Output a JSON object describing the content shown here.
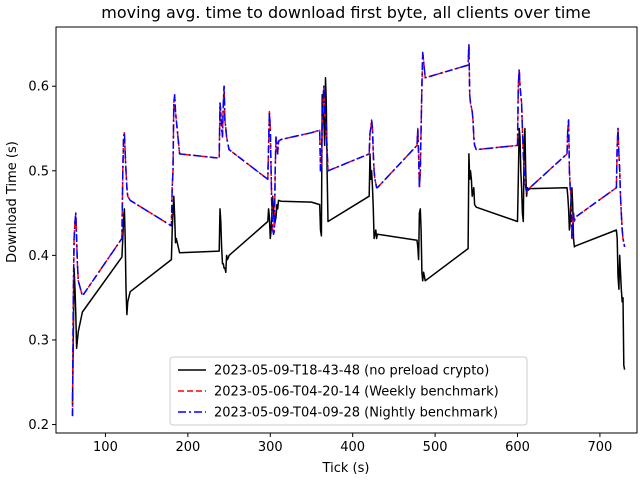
{
  "chart_data": {
    "type": "line",
    "title": "moving avg. time to download first byte, all clients over time",
    "xlabel": "Tick (s)",
    "ylabel": "Download Time (s)",
    "xlim": [
      40,
      745
    ],
    "ylim": [
      0.19,
      0.67
    ],
    "xticks": [
      100,
      200,
      300,
      400,
      500,
      600,
      700
    ],
    "yticks": [
      0.2,
      0.3,
      0.4,
      0.5,
      0.6
    ],
    "ytick_labels": [
      "0.2",
      "0.3",
      "0.4",
      "0.5",
      "0.6"
    ],
    "grid": false,
    "legend_position": "lower-center",
    "series": [
      {
        "name": "2023-05-09-T18-43-48 (no preload crypto)",
        "color": "#000000",
        "dash": "solid",
        "x": [
          60,
          61,
          62,
          63,
          64,
          65,
          66,
          67,
          72,
          120,
          121,
          122,
          123,
          124,
          125,
          126,
          127,
          130,
          180,
          181,
          182,
          183,
          184,
          185,
          186,
          190,
          238,
          239,
          240,
          241,
          242,
          243,
          244,
          245,
          246,
          247,
          248,
          249,
          250,
          297,
          298,
          299,
          300,
          301,
          302,
          303,
          304,
          305,
          306,
          307,
          308,
          309,
          310,
          313,
          350,
          360,
          361,
          362,
          363,
          364,
          365,
          366,
          367,
          368,
          369,
          370,
          420,
          421,
          422,
          423,
          424,
          425,
          426,
          427,
          428,
          429,
          430,
          478,
          479,
          480,
          481,
          482,
          483,
          484,
          485,
          486,
          487,
          488,
          540,
          541,
          542,
          543,
          544,
          545,
          546,
          547,
          548,
          550,
          600,
          601,
          602,
          603,
          604,
          605,
          606,
          607,
          608,
          609,
          610,
          611,
          612,
          613,
          615,
          660,
          661,
          662,
          663,
          664,
          665,
          666,
          667,
          668,
          669,
          670,
          720,
          721,
          722,
          723,
          724,
          725,
          726,
          727,
          728,
          729,
          730
        ],
        "y": [
          0.225,
          0.3,
          0.385,
          0.36,
          0.33,
          0.29,
          0.3,
          0.31,
          0.333,
          0.398,
          0.42,
          0.445,
          0.455,
          0.42,
          0.36,
          0.33,
          0.345,
          0.357,
          0.395,
          0.43,
          0.45,
          0.47,
          0.445,
          0.415,
          0.42,
          0.403,
          0.405,
          0.455,
          0.44,
          0.41,
          0.39,
          0.39,
          0.385,
          0.385,
          0.38,
          0.4,
          0.395,
          0.397,
          0.4,
          0.44,
          0.455,
          0.445,
          0.42,
          0.43,
          0.45,
          0.47,
          0.45,
          0.435,
          0.44,
          0.445,
          0.46,
          0.455,
          0.465,
          0.464,
          0.463,
          0.46,
          0.43,
          0.423,
          0.59,
          0.57,
          0.56,
          0.53,
          0.61,
          0.58,
          0.5,
          0.44,
          0.47,
          0.52,
          0.49,
          0.5,
          0.48,
          0.455,
          0.42,
          0.425,
          0.43,
          0.42,
          0.425,
          0.418,
          0.41,
          0.395,
          0.45,
          0.455,
          0.43,
          0.38,
          0.37,
          0.38,
          0.375,
          0.37,
          0.408,
          0.52,
          0.49,
          0.5,
          0.49,
          0.47,
          0.475,
          0.48,
          0.46,
          0.457,
          0.44,
          0.49,
          0.55,
          0.54,
          0.5,
          0.48,
          0.45,
          0.44,
          0.53,
          0.55,
          0.5,
          0.47,
          0.48,
          0.477,
          0.479,
          0.48,
          0.47,
          0.455,
          0.43,
          0.44,
          0.47,
          0.48,
          0.46,
          0.42,
          0.41,
          0.411,
          0.43,
          0.42,
          0.375,
          0.36,
          0.4,
          0.38,
          0.36,
          0.345,
          0.35,
          0.27,
          0.265
        ]
      },
      {
        "name": "2023-05-06-T04-20-14 (Weekly benchmark)",
        "color": "#ff0000",
        "dash": "dashed",
        "x": [
          60,
          61,
          62,
          63,
          64,
          65,
          66,
          67,
          72,
          120,
          121,
          122,
          123,
          124,
          125,
          126,
          127,
          130,
          180,
          181,
          182,
          183,
          184,
          185,
          186,
          190,
          238,
          239,
          240,
          241,
          242,
          243,
          244,
          245,
          246,
          247,
          248,
          249,
          250,
          297,
          298,
          299,
          300,
          301,
          302,
          303,
          304,
          305,
          306,
          307,
          308,
          309,
          310,
          313,
          350,
          360,
          361,
          362,
          363,
          364,
          365,
          366,
          367,
          368,
          369,
          370,
          420,
          421,
          422,
          423,
          424,
          425,
          426,
          427,
          428,
          429,
          430,
          478,
          479,
          480,
          481,
          482,
          483,
          484,
          485,
          486,
          487,
          488,
          540,
          541,
          542,
          543,
          544,
          545,
          546,
          547,
          548,
          550,
          600,
          601,
          602,
          603,
          604,
          605,
          606,
          607,
          608,
          609,
          610,
          611,
          612,
          613,
          615,
          660,
          661,
          662,
          663,
          664,
          665,
          666,
          667,
          668,
          669,
          670,
          720,
          721,
          722,
          723,
          724,
          725,
          726,
          727,
          728,
          729,
          730
        ],
        "y": [
          0.21,
          0.35,
          0.42,
          0.44,
          0.45,
          0.42,
          0.39,
          0.37,
          0.352,
          0.42,
          0.5,
          0.54,
          0.545,
          0.52,
          0.5,
          0.48,
          0.47,
          0.465,
          0.435,
          0.48,
          0.5,
          0.58,
          0.59,
          0.57,
          0.56,
          0.52,
          0.515,
          0.58,
          0.57,
          0.55,
          0.54,
          0.58,
          0.6,
          0.56,
          0.55,
          0.54,
          0.535,
          0.53,
          0.525,
          0.49,
          0.53,
          0.57,
          0.55,
          0.5,
          0.45,
          0.43,
          0.425,
          0.43,
          0.5,
          0.54,
          0.53,
          0.52,
          0.535,
          0.537,
          0.545,
          0.548,
          0.5,
          0.5,
          0.56,
          0.58,
          0.6,
          0.57,
          0.56,
          0.55,
          0.525,
          0.5,
          0.52,
          0.545,
          0.55,
          0.56,
          0.55,
          0.52,
          0.5,
          0.49,
          0.485,
          0.48,
          0.48,
          0.53,
          0.55,
          0.52,
          0.48,
          0.5,
          0.55,
          0.6,
          0.64,
          0.63,
          0.62,
          0.61,
          0.625,
          0.65,
          0.59,
          0.58,
          0.575,
          0.57,
          0.56,
          0.54,
          0.53,
          0.525,
          0.53,
          0.6,
          0.62,
          0.6,
          0.59,
          0.58,
          0.55,
          0.52,
          0.5,
          0.49,
          0.48,
          0.475,
          0.476,
          0.478,
          0.48,
          0.52,
          0.55,
          0.56,
          0.5,
          0.48,
          0.47,
          0.42,
          0.43,
          0.45,
          0.44,
          0.445,
          0.48,
          0.53,
          0.55,
          0.52,
          0.5,
          0.47,
          0.45,
          0.43,
          0.42,
          0.415,
          0.41
        ]
      },
      {
        "name": "2023-05-09-T04-09-28 (Nightly benchmark)",
        "color": "#0000ff",
        "dash": "dashdot",
        "x": [
          60,
          61,
          62,
          63,
          64,
          65,
          66,
          67,
          72,
          120,
          121,
          122,
          123,
          124,
          125,
          126,
          127,
          130,
          180,
          181,
          182,
          183,
          184,
          185,
          186,
          190,
          238,
          239,
          240,
          241,
          242,
          243,
          244,
          245,
          246,
          247,
          248,
          249,
          250,
          297,
          298,
          299,
          300,
          301,
          302,
          303,
          304,
          305,
          306,
          307,
          308,
          309,
          310,
          313,
          350,
          360,
          361,
          362,
          363,
          364,
          365,
          366,
          367,
          368,
          369,
          370,
          420,
          421,
          422,
          423,
          424,
          425,
          426,
          427,
          428,
          429,
          430,
          478,
          479,
          480,
          481,
          482,
          483,
          484,
          485,
          486,
          487,
          488,
          540,
          541,
          542,
          543,
          544,
          545,
          546,
          547,
          548,
          550,
          600,
          601,
          602,
          603,
          604,
          605,
          606,
          607,
          608,
          609,
          610,
          611,
          612,
          613,
          615,
          660,
          661,
          662,
          663,
          664,
          665,
          666,
          667,
          668,
          669,
          670,
          720,
          721,
          722,
          723,
          724,
          725,
          726,
          727,
          728,
          729,
          730
        ],
        "y": [
          0.21,
          0.35,
          0.42,
          0.44,
          0.45,
          0.42,
          0.39,
          0.37,
          0.352,
          0.42,
          0.5,
          0.54,
          0.545,
          0.52,
          0.5,
          0.48,
          0.47,
          0.465,
          0.435,
          0.48,
          0.5,
          0.58,
          0.59,
          0.57,
          0.56,
          0.52,
          0.515,
          0.58,
          0.57,
          0.55,
          0.54,
          0.58,
          0.6,
          0.56,
          0.55,
          0.54,
          0.535,
          0.53,
          0.525,
          0.49,
          0.53,
          0.57,
          0.55,
          0.5,
          0.45,
          0.43,
          0.425,
          0.43,
          0.5,
          0.54,
          0.53,
          0.52,
          0.535,
          0.537,
          0.545,
          0.548,
          0.5,
          0.5,
          0.56,
          0.58,
          0.6,
          0.57,
          0.56,
          0.55,
          0.525,
          0.5,
          0.52,
          0.545,
          0.55,
          0.56,
          0.55,
          0.52,
          0.5,
          0.49,
          0.485,
          0.48,
          0.48,
          0.53,
          0.55,
          0.52,
          0.48,
          0.5,
          0.55,
          0.6,
          0.64,
          0.63,
          0.62,
          0.61,
          0.625,
          0.65,
          0.59,
          0.58,
          0.575,
          0.57,
          0.56,
          0.54,
          0.53,
          0.525,
          0.53,
          0.6,
          0.62,
          0.6,
          0.59,
          0.58,
          0.55,
          0.52,
          0.5,
          0.49,
          0.48,
          0.475,
          0.476,
          0.478,
          0.48,
          0.52,
          0.55,
          0.56,
          0.5,
          0.48,
          0.47,
          0.42,
          0.43,
          0.45,
          0.44,
          0.445,
          0.48,
          0.53,
          0.55,
          0.52,
          0.5,
          0.47,
          0.45,
          0.43,
          0.42,
          0.415,
          0.41
        ]
      }
    ]
  }
}
